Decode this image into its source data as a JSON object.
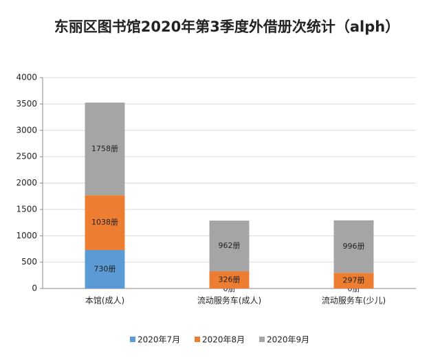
{
  "chart_data": {
    "type": "stacked_bar",
    "title": "东丽区图书馆2020年第3季度外借册次统计（alph）",
    "categories": [
      "本馆(成人)",
      "流动服务车(成人)",
      "流动服务车(少儿)"
    ],
    "series": [
      {
        "name": "2020年7月",
        "color": "#5b9bd5",
        "values": [
          730,
          0,
          0
        ],
        "value_labels": [
          "730册",
          "0册",
          "0册"
        ]
      },
      {
        "name": "2020年8月",
        "color": "#ed7d31",
        "values": [
          1038,
          326,
          297
        ],
        "value_labels": [
          "1038册",
          "326册",
          "297册"
        ]
      },
      {
        "name": "2020年9月",
        "color": "#a5a5a5",
        "values": [
          1758,
          962,
          996
        ],
        "value_labels": [
          "1758册",
          "962册",
          "996册"
        ]
      }
    ],
    "ylim": [
      0,
      4000
    ],
    "yticks": [
      0,
      500,
      1000,
      1500,
      2000,
      2500,
      3000,
      3500,
      4000
    ],
    "grid": true,
    "legend": "bottom"
  }
}
